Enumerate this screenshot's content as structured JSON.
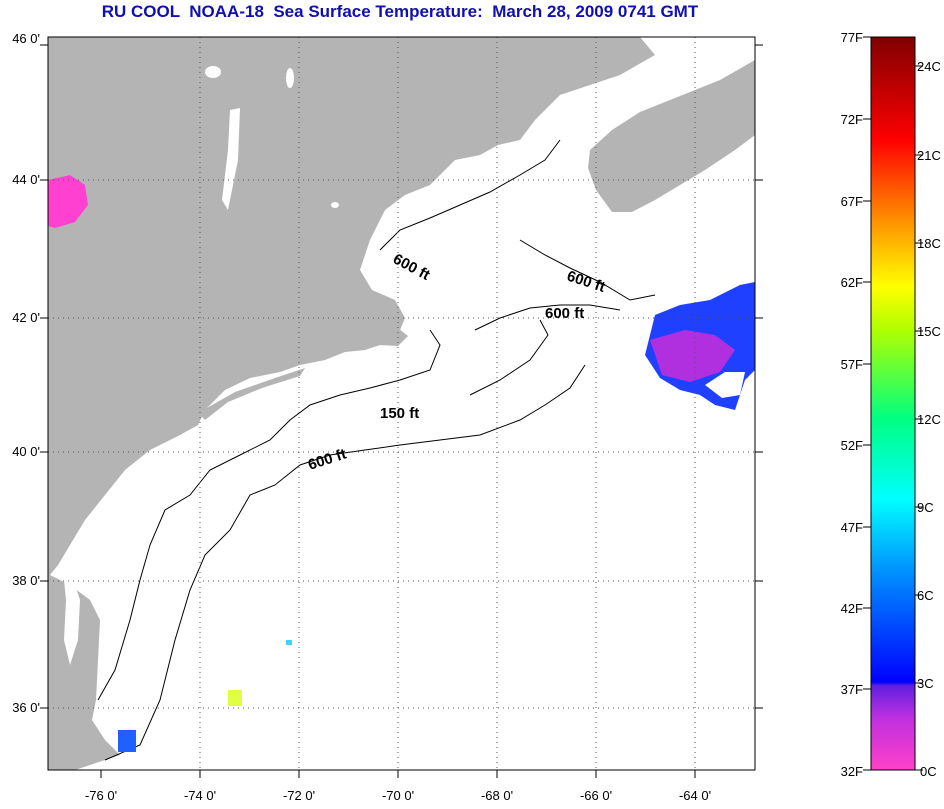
{
  "title": "RU COOL  NOAA-18  Sea Surface Temperature:  March 28, 2009 0741 GMT",
  "latitude_labels": [
    "46 0'",
    "44 0'",
    "42 0'",
    "40 0'",
    "38 0'",
    "36 0'"
  ],
  "longitude_labels": [
    "-76 0'",
    "-74 0'",
    "-72 0'",
    "-70 0'",
    "-68 0'",
    "-66 0'",
    "-64 0'"
  ],
  "contour_labels": [
    "600 ft",
    "600 ft",
    "600 ft",
    "150 ft",
    "600 ft"
  ],
  "colorbar": {
    "fahrenheit_labels": [
      "77F",
      "72F",
      "67F",
      "62F",
      "57F",
      "52F",
      "47F",
      "42F",
      "37F",
      "32F"
    ],
    "celsius_labels": [
      "24C",
      "21C",
      "18C",
      "15C",
      "12C",
      "9C",
      "6C",
      "3C",
      "0C"
    ]
  },
  "colors": {
    "title": "#1010b0",
    "land": "#b4b4b4",
    "ocean": "#ffffff"
  }
}
